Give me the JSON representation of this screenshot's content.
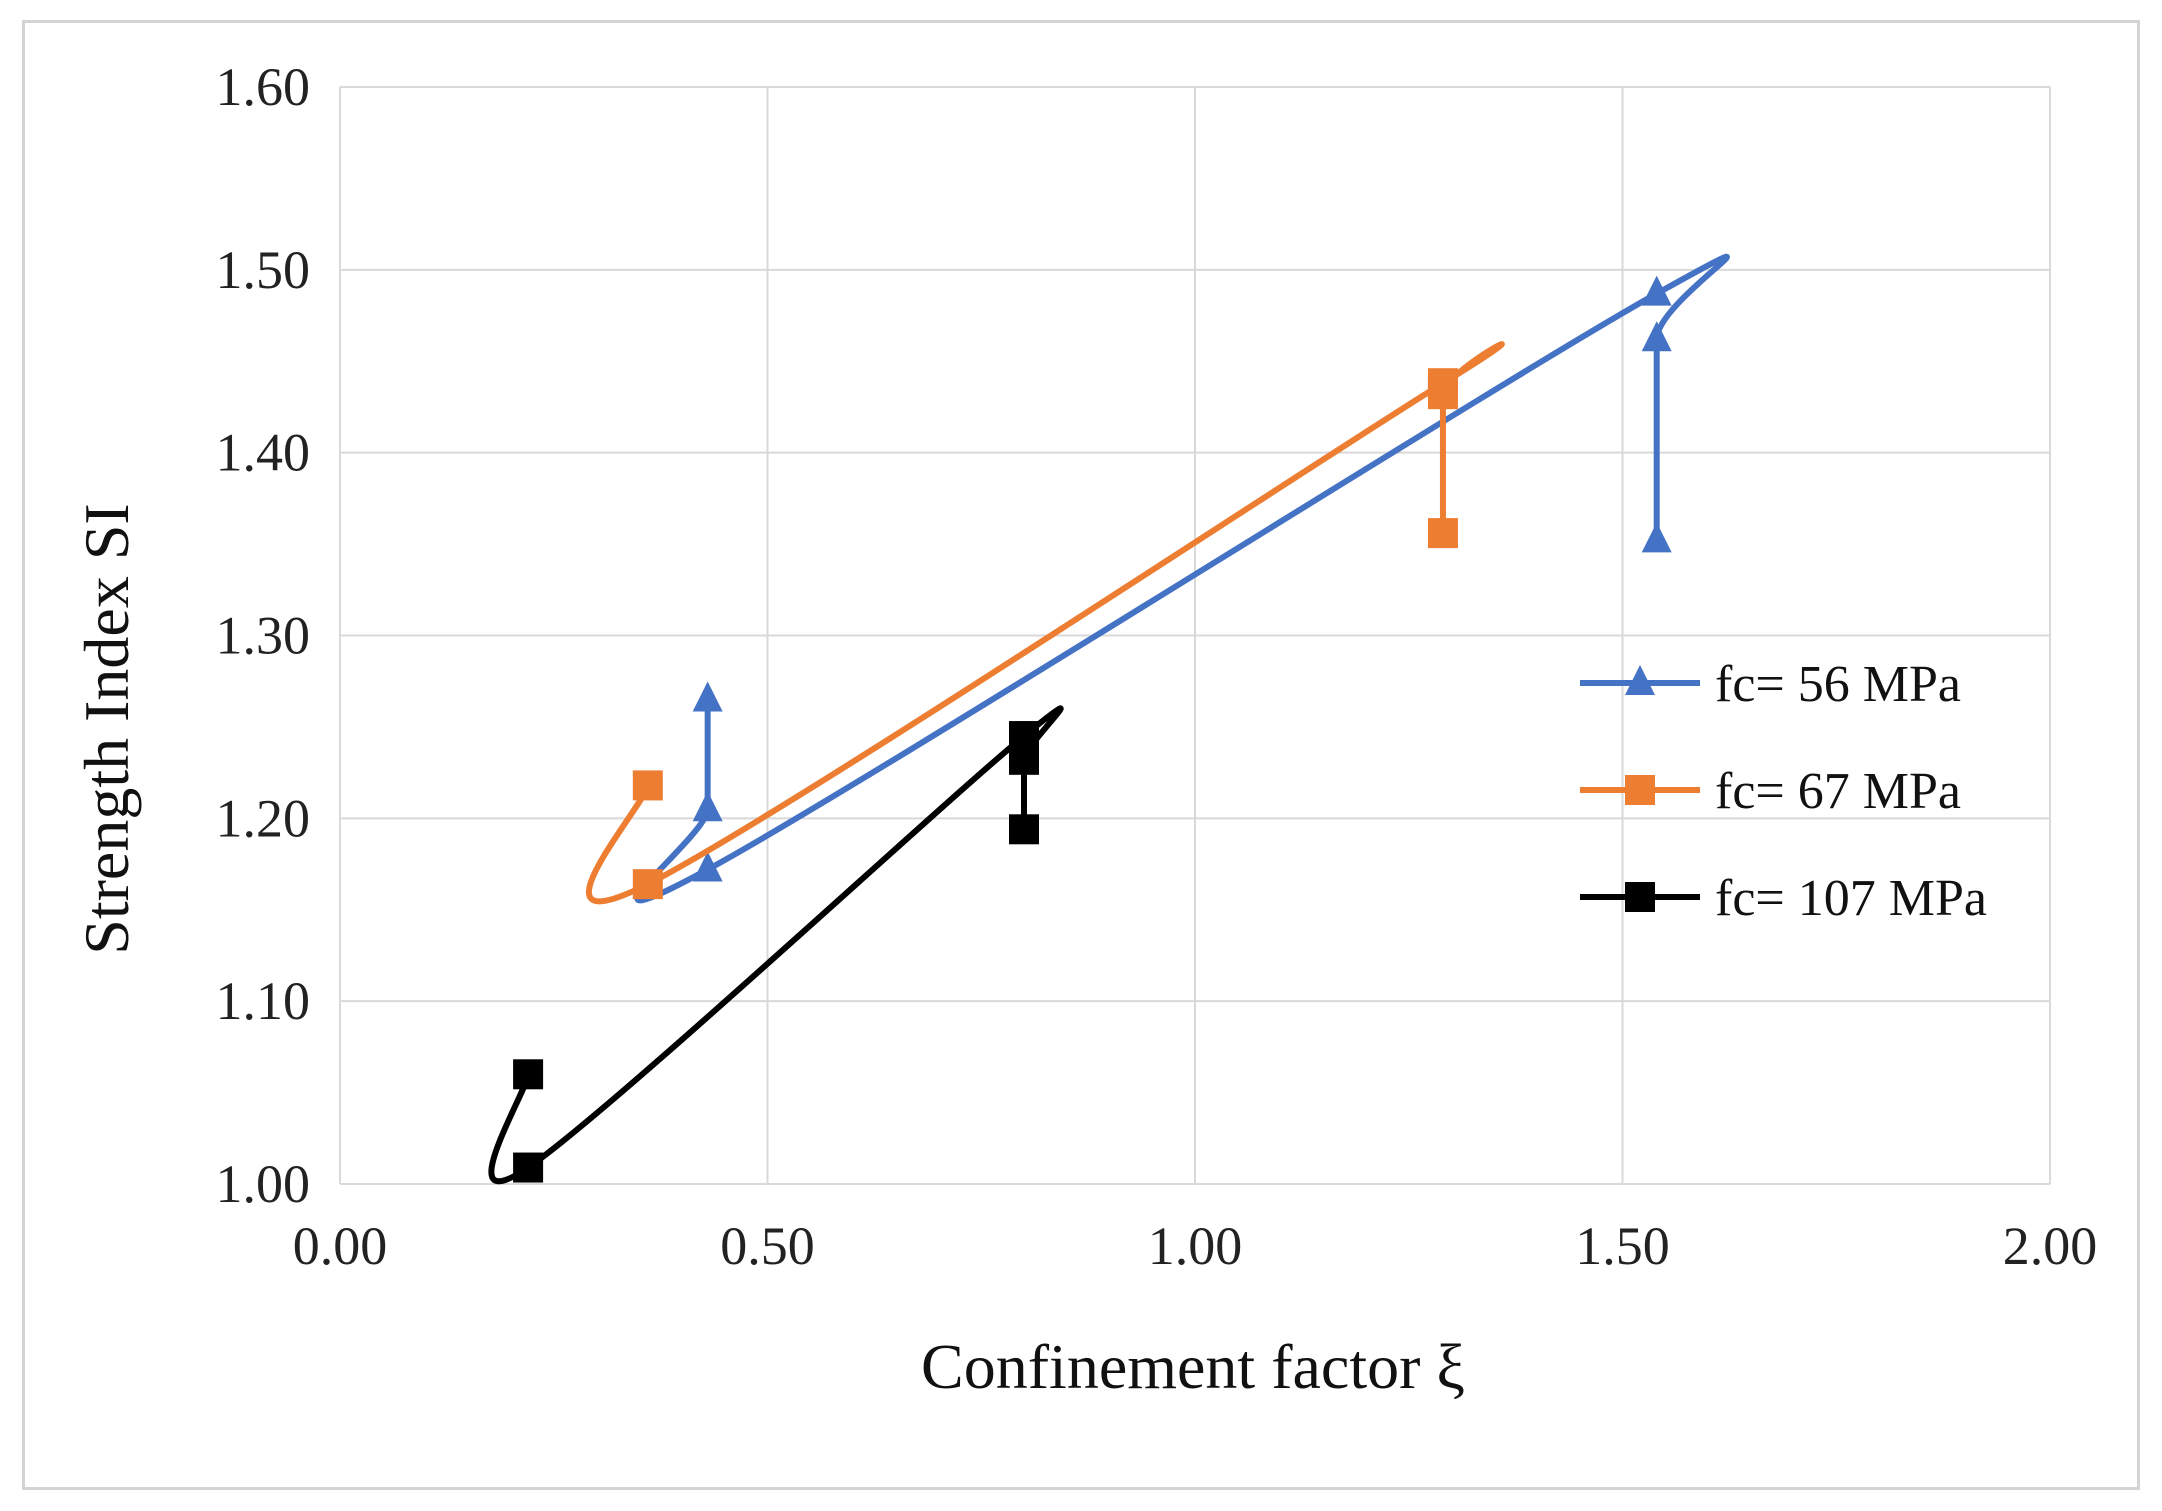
{
  "chart_data": {
    "type": "line",
    "title": "",
    "xlabel": "Confinement factor ξ",
    "ylabel": "Strength Index SI",
    "xlim": [
      0.0,
      2.0
    ],
    "ylim": [
      1.0,
      1.6
    ],
    "xticks": [
      "0.00",
      "0.50",
      "1.00",
      "1.50",
      "2.00"
    ],
    "yticks": [
      "1.00",
      "1.10",
      "1.20",
      "1.30",
      "1.40",
      "1.50",
      "1.60"
    ],
    "grid": true,
    "legend_position": "right",
    "series": [
      {
        "name": "fc= 56 MPa",
        "color": "#4472C4",
        "marker": "triangle",
        "points": [
          [
            0.43,
            1.265
          ],
          [
            0.43,
            1.205
          ],
          [
            0.43,
            1.172
          ],
          [
            1.54,
            1.487
          ],
          [
            1.54,
            1.462
          ],
          [
            1.54,
            1.352
          ]
        ]
      },
      {
        "name": "fc= 67 MPa",
        "color": "#ED7D31",
        "marker": "square",
        "points": [
          [
            0.36,
            1.218
          ],
          [
            0.36,
            1.164
          ],
          [
            1.29,
            1.438
          ],
          [
            1.29,
            1.432
          ],
          [
            1.29,
            1.356
          ]
        ]
      },
      {
        "name": "fc= 107 MPa",
        "color": "#000000",
        "marker": "square",
        "points": [
          [
            0.22,
            1.06
          ],
          [
            0.22,
            1.009
          ],
          [
            0.8,
            1.245
          ],
          [
            0.8,
            1.232
          ],
          [
            0.8,
            1.194
          ]
        ]
      }
    ]
  }
}
